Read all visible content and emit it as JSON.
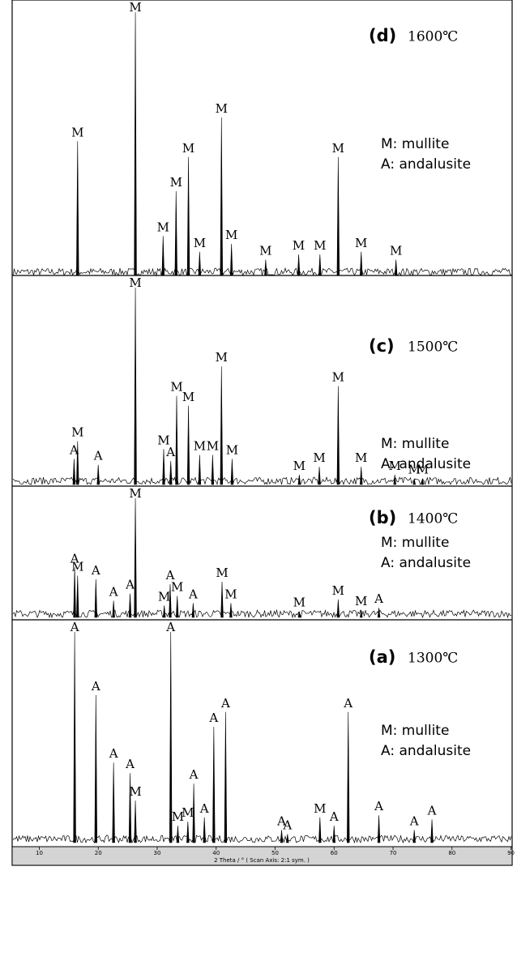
{
  "chart_data": {
    "type": "stick",
    "xlabel": "2 Theta / ° ( Scan Axis: 2:1 sym. )",
    "xlim": [
      5.4,
      90.2
    ],
    "xticks": [
      10,
      20,
      30,
      40,
      50,
      60,
      70,
      80,
      90
    ],
    "color": "#000000",
    "panels": [
      {
        "label": "(d)",
        "temperature": "1600℃",
        "legend": [
          "M: mullite",
          "A: andalusite"
        ],
        "ylim": [
          0,
          100
        ],
        "peaks": {
          "x": [
            16.5,
            26.3,
            31.0,
            33.2,
            35.3,
            37.2,
            40.9,
            42.6,
            48.4,
            54.0,
            57.6,
            60.7,
            64.6,
            70.5
          ],
          "values": [
            51,
            100,
            15,
            32,
            45,
            9,
            60,
            12,
            6,
            8,
            8,
            45,
            9,
            6
          ],
          "labels": [
            "M",
            "M",
            "M",
            "M",
            "M",
            "M",
            "M",
            "M",
            "M",
            "M",
            "M",
            "M",
            "M",
            "M"
          ]
        }
      },
      {
        "label": "(c)",
        "temperature": "1500℃",
        "legend": [
          "M: mullite",
          "A: andalusite"
        ],
        "ylim": [
          0,
          100
        ],
        "peaks": {
          "x": [
            15.9,
            16.5,
            20.0,
            26.3,
            31.1,
            32.3,
            33.3,
            35.3,
            37.2,
            39.4,
            40.9,
            42.7,
            54.1,
            57.5,
            60.7,
            64.6,
            70.3,
            73.6,
            75.0
          ],
          "values": [
            13,
            22,
            10,
            100,
            18,
            12,
            45,
            40,
            15,
            15,
            60,
            13,
            5,
            9,
            50,
            9,
            5,
            3,
            3
          ],
          "labels": [
            "A",
            "M",
            "A",
            "M",
            "M",
            "A",
            "M",
            "M",
            "M",
            "M",
            "M",
            "M",
            "M",
            "M",
            "M",
            "M",
            "M",
            "M",
            "M"
          ]
        }
      },
      {
        "label": "(b)",
        "temperature": "1400℃",
        "legend": [
          "M: mullite",
          "A: andalusite"
        ],
        "ylim": [
          0,
          100
        ],
        "peaks": {
          "x": [
            16.0,
            16.5,
            19.6,
            22.6,
            25.4,
            26.3,
            31.2,
            32.2,
            33.4,
            36.1,
            41.0,
            42.5,
            54.1,
            60.7,
            64.6,
            67.6
          ],
          "values": [
            42,
            35,
            32,
            14,
            20,
            100,
            10,
            28,
            18,
            12,
            30,
            12,
            5,
            15,
            6,
            8
          ],
          "labels": [
            "A",
            "M",
            "A",
            "A",
            "A",
            "M",
            "M",
            "A",
            "M",
            "A",
            "M",
            "M",
            "M",
            "M",
            "M",
            "A"
          ]
        }
      },
      {
        "label": "(a)",
        "temperature": "1300℃",
        "legend": [
          "M: mullite",
          "A: andalusite"
        ],
        "ylim": [
          0,
          100
        ],
        "peaks": {
          "x": [
            16.0,
            19.6,
            22.6,
            25.4,
            26.3,
            32.3,
            33.5,
            35.2,
            36.2,
            38.0,
            39.6,
            41.6,
            51.1,
            52.1,
            57.6,
            60.0,
            62.4,
            67.6,
            73.6,
            76.6
          ],
          "values": [
            100,
            70,
            38,
            33,
            20,
            100,
            8,
            10,
            28,
            12,
            55,
            62,
            6,
            4,
            12,
            8,
            62,
            13,
            6,
            11
          ],
          "labels": [
            "A",
            "A",
            "A",
            "A",
            "M",
            "A",
            "M",
            "M",
            "A",
            "A",
            "A",
            "A",
            "A",
            "A",
            "M",
            "A",
            "A",
            "A",
            "A",
            "A"
          ]
        }
      }
    ]
  }
}
